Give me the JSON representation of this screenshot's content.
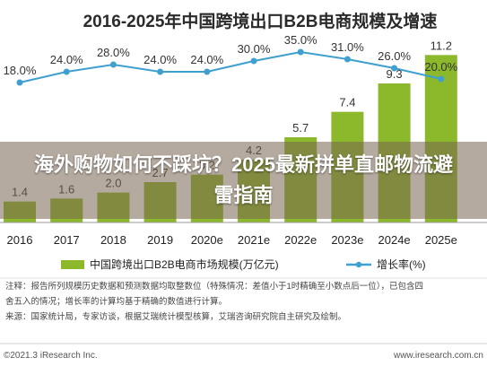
{
  "chart_data": {
    "type": "bar",
    "title": "2016-2025年中国跨境出口B2B电商规模及增速",
    "categories": [
      "2016",
      "2017",
      "2018",
      "2019",
      "2020e",
      "2021e",
      "2022e",
      "2023e",
      "2024e",
      "2025e"
    ],
    "series": [
      {
        "name": "中国跨境出口B2B电商市场规模(万亿元)",
        "type": "bar",
        "color": "#8cb82b",
        "values": [
          1.4,
          1.6,
          2.0,
          2.7,
          3.2,
          4.2,
          5.7,
          7.4,
          9.3,
          11.2
        ],
        "labels": [
          "1.4",
          "1.6",
          "2.0",
          "2.7",
          "3.2",
          "4.2",
          "5.7",
          "7.4",
          "9.3",
          "11.2"
        ]
      },
      {
        "name": "增长率(%)",
        "type": "line",
        "color": "#3f9fcf",
        "values": [
          18.0,
          24.0,
          28.0,
          24.0,
          24.0,
          30.0,
          35.0,
          31.0,
          26.0,
          20.0
        ],
        "labels": [
          "18.0%",
          "24.0%",
          "28.0%",
          "24.0%",
          "24.0%",
          "30.0%",
          "35.0%",
          "31.0%",
          "26.0%",
          "20.0%"
        ]
      }
    ],
    "ylim_bar": [
      0,
      12
    ],
    "ylim_line": [
      -60,
      40
    ]
  },
  "overlay_text": "海外购物如何不踩坑？2025最新拼单直邮物流避雷指南",
  "legend": {
    "bar": "中国跨境出口B2B电商市场规模(万亿元)",
    "line": "增长率(%)"
  },
  "notes": [
    "注释：报告所列规模历史数据和预测数据均取整数位（特殊情况：差值小于1时精确至小数点后一位），已包含四",
    "舍五入的情况；增长率的计算均基于精确的数值进行计算。",
    "来源：国家统计局，专家访谈，根据艾瑞统计模型核算，艾瑞咨询研究院自主研究及绘制。"
  ],
  "footer": {
    "left": "©2021.3 iResearch Inc.",
    "right": "www.iresearch.com.cn"
  }
}
